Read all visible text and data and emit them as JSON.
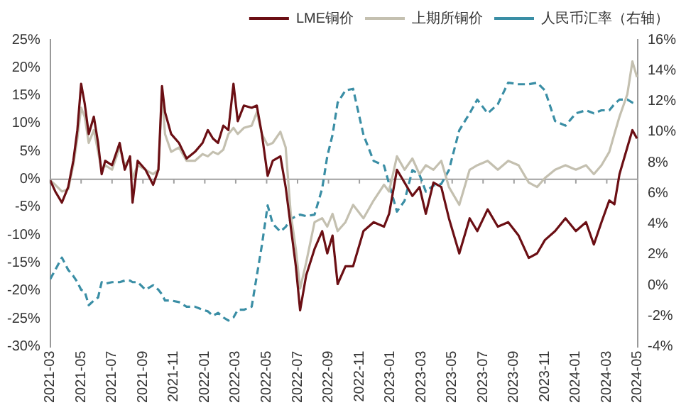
{
  "chart_data": {
    "type": "line",
    "legend": "top",
    "marker": "none",
    "grid": false,
    "x": [
      "2021-03-01",
      "2021-03-11",
      "2021-03-24",
      "2021-04-06",
      "2021-04-16",
      "2021-04-24",
      "2021-05-01",
      "2021-05-08",
      "2021-05-16",
      "2021-05-26",
      "2021-06-04",
      "2021-06-11",
      "2021-06-18",
      "2021-07-01",
      "2021-07-16",
      "2021-07-26",
      "2021-08-06",
      "2021-08-11",
      "2021-08-21",
      "2021-09-06",
      "2021-09-21",
      "2021-10-01",
      "2021-10-08",
      "2021-10-14",
      "2021-10-26",
      "2021-11-11",
      "2021-11-26",
      "2021-12-12",
      "2021-12-27",
      "2022-01-07",
      "2022-01-17",
      "2022-01-27",
      "2022-02-07",
      "2022-02-17",
      "2022-02-27",
      "2022-03-05",
      "2022-03-17",
      "2022-04-02",
      "2022-04-12",
      "2022-04-22",
      "2022-05-03",
      "2022-05-13",
      "2022-05-28",
      "2022-06-08",
      "2022-06-18",
      "2022-06-28",
      "2022-07-06",
      "2022-07-18",
      "2022-08-04",
      "2022-08-19",
      "2022-08-29",
      "2022-09-09",
      "2022-09-19",
      "2022-10-04",
      "2022-10-19",
      "2022-11-09",
      "2022-11-29",
      "2022-12-19",
      "2022-12-29",
      "2023-01-14",
      "2023-01-29",
      "2023-02-14",
      "2023-02-28",
      "2023-03-10",
      "2023-03-25",
      "2023-04-10",
      "2023-04-25",
      "2023-05-15",
      "2023-06-05",
      "2023-06-20",
      "2023-07-10",
      "2023-07-30",
      "2023-08-20",
      "2023-09-10",
      "2023-09-30",
      "2023-10-16",
      "2023-11-01",
      "2023-11-21",
      "2023-12-11",
      "2024-01-01",
      "2024-01-21",
      "2024-02-06",
      "2024-02-21",
      "2024-03-06",
      "2024-03-16",
      "2024-03-26",
      "2024-04-11",
      "2024-04-21",
      "2024-04-30"
    ],
    "series": [
      {
        "name": "LME铜价",
        "color": "#6b0f14",
        "values": [
          -0.2,
          -2.2,
          -4.2,
          -1.4,
          3.3,
          8.8,
          17.1,
          13.6,
          8.1,
          11.2,
          6.5,
          0.9,
          3.3,
          2.5,
          6.5,
          1.7,
          4.1,
          -4.2,
          3.3,
          1.7,
          -1.0,
          1.7,
          16.7,
          12.0,
          8.1,
          6.5,
          3.7,
          4.9,
          6.5,
          8.8,
          7.3,
          6.5,
          9.6,
          8.8,
          17.1,
          10.4,
          13.2,
          12.8,
          13.2,
          8.1,
          0.6,
          3.3,
          4.1,
          -1.4,
          -8.5,
          -15.6,
          -23.5,
          -17.2,
          -12.5,
          -9.3,
          -13.3,
          -10.1,
          -18.8,
          -15.6,
          -15.6,
          -9.3,
          -7.7,
          -8.5,
          -6.2,
          1.7,
          -0.6,
          -3.0,
          -1.4,
          -6.2,
          -0.6,
          -1.4,
          -7.0,
          -13.3,
          -7.0,
          -9.3,
          -5.4,
          -8.5,
          -7.7,
          -10.1,
          -14.1,
          -13.3,
          -10.9,
          -9.3,
          -7.0,
          -9.3,
          -7.7,
          -11.7,
          -7.7,
          -3.8,
          -4.5,
          0.9,
          5.7,
          8.8,
          7.3
        ]
      },
      {
        "name": "上期所铜价",
        "color": "#c4c0b0",
        "values": [
          -0.2,
          -1.0,
          -2.2,
          -1.8,
          2.5,
          7.3,
          12.8,
          11.2,
          6.5,
          8.8,
          4.9,
          1.7,
          2.5,
          1.7,
          5.7,
          2.5,
          3.7,
          0.2,
          2.5,
          1.7,
          0.9,
          1.7,
          15.2,
          8.1,
          4.9,
          5.7,
          3.3,
          3.3,
          4.5,
          4.1,
          4.9,
          4.5,
          5.3,
          8.1,
          9.2,
          8.1,
          9.2,
          9.6,
          12.0,
          8.1,
          6.1,
          6.5,
          8.5,
          5.7,
          -6.2,
          -12.5,
          -19.6,
          -14.9,
          -7.7,
          -7.0,
          -8.5,
          -6.2,
          -9.3,
          -7.7,
          -4.6,
          -7.0,
          -3.8,
          -1.0,
          -2.2,
          4.1,
          1.7,
          3.7,
          0.9,
          2.5,
          1.7,
          3.3,
          -1.4,
          -4.6,
          1.7,
          2.5,
          3.3,
          1.7,
          3.3,
          2.5,
          -0.6,
          -1.4,
          0.2,
          1.7,
          2.5,
          1.7,
          2.5,
          0.9,
          2.5,
          4.9,
          8.1,
          11.2,
          15.2,
          21.1,
          18.3
        ]
      },
      {
        "name": "人民币汇率（右轴）",
        "color": "#3a8ea5",
        "axis": "y2",
        "line_style": "dashed",
        "values": [
          0.4,
          1.0,
          1.8,
          1.0,
          0.6,
          0.2,
          -0.3,
          -0.4,
          -1.3,
          -1.0,
          -0.8,
          0.2,
          0.1,
          0.2,
          0.2,
          0.3,
          0.3,
          0.2,
          0.2,
          -0.3,
          0.0,
          -0.3,
          -0.6,
          -1.0,
          -1.0,
          -1.1,
          -1.4,
          -1.4,
          -1.6,
          -1.7,
          -2.0,
          -1.8,
          -2.1,
          -2.3,
          -2.1,
          -1.6,
          -1.6,
          -1.4,
          0.6,
          2.6,
          5.2,
          4.0,
          3.5,
          3.8,
          4.3,
          4.5,
          4.6,
          4.5,
          4.6,
          6.3,
          8.4,
          9.8,
          11.9,
          12.7,
          12.8,
          9.8,
          8.1,
          7.8,
          6.6,
          4.8,
          5.5,
          7.5,
          7.2,
          6.1,
          6.5,
          6.6,
          7.5,
          10.1,
          11.2,
          12.1,
          11.2,
          11.8,
          13.2,
          13.1,
          13.1,
          13.2,
          12.7,
          10.7,
          10.4,
          11.2,
          11.4,
          11.2,
          11.4,
          11.4,
          11.8,
          12.1,
          12.1,
          11.9,
          11.8
        ]
      }
    ],
    "xlim": [
      "2021-03",
      "2024-05"
    ],
    "xticks": [
      "2021-03",
      "2021-05",
      "2021-07",
      "2021-09",
      "2021-11",
      "2022-01",
      "2022-03",
      "2022-05",
      "2022-07",
      "2022-09",
      "2022-11",
      "2023-01",
      "2023-03",
      "2023-05",
      "2023-07",
      "2023-09",
      "2023-11",
      "2024-01",
      "2024-03",
      "2024-05"
    ],
    "ylim": [
      -30,
      25
    ],
    "yticks": [
      {
        "value": -30,
        "label": "-30%"
      },
      {
        "value": -25,
        "label": "-25%"
      },
      {
        "value": -20,
        "label": "-20%"
      },
      {
        "value": -15,
        "label": "-15%"
      },
      {
        "value": -10,
        "label": "-10%"
      },
      {
        "value": -5,
        "label": "-5%"
      },
      {
        "value": 0,
        "label": "0%"
      },
      {
        "value": 5,
        "label": "5%"
      },
      {
        "value": 10,
        "label": "10%"
      },
      {
        "value": 15,
        "label": "15%"
      },
      {
        "value": 20,
        "label": "20%"
      },
      {
        "value": 25,
        "label": "25%"
      }
    ],
    "y2lim": [
      -4,
      16
    ],
    "y2ticks": [
      {
        "value": -4,
        "label": "-4%"
      },
      {
        "value": -2,
        "label": "-2%"
      },
      {
        "value": 0,
        "label": "0%"
      },
      {
        "value": 2,
        "label": "2%"
      },
      {
        "value": 4,
        "label": "4%"
      },
      {
        "value": 6,
        "label": "6%"
      },
      {
        "value": 8,
        "label": "8%"
      },
      {
        "value": 10,
        "label": "10%"
      },
      {
        "value": 12,
        "label": "12%"
      },
      {
        "value": 14,
        "label": "14%"
      },
      {
        "value": 16,
        "label": "16%"
      }
    ],
    "ref_lines": [
      {
        "axis": "y",
        "value": 0,
        "color": "#a0a0a0"
      }
    ]
  }
}
